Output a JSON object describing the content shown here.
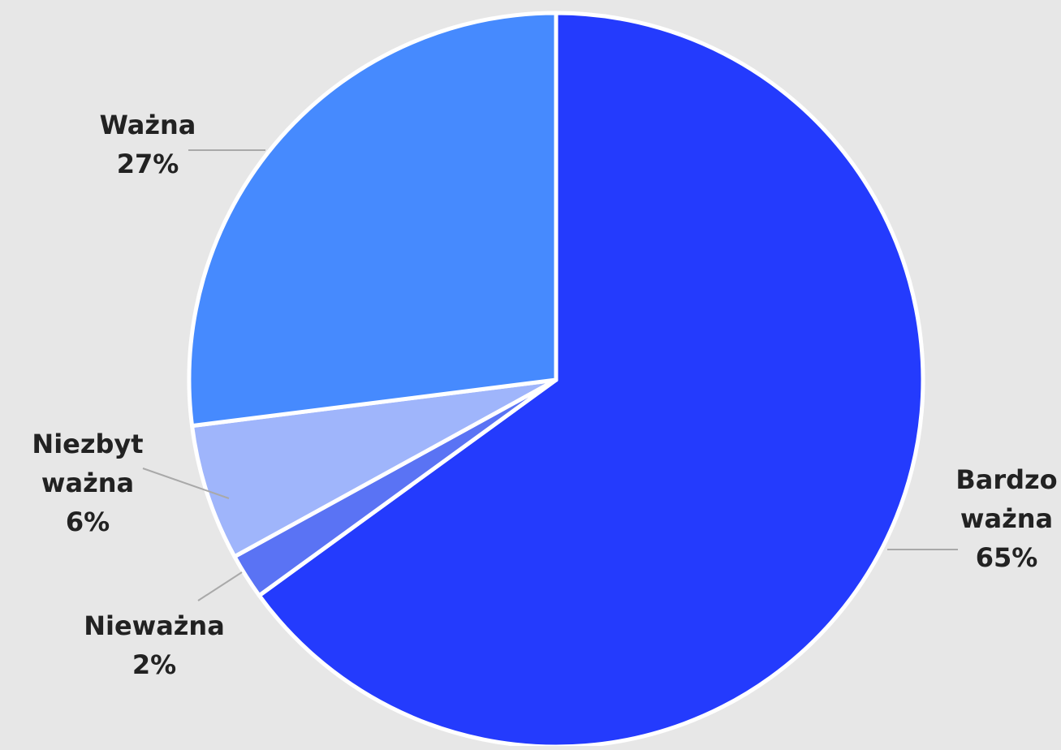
{
  "chart_data": {
    "type": "pie",
    "colors": {
      "background": "#e7e7e7",
      "slice_border": "#ffffff",
      "leader_line": "#a9a9a9",
      "label_text": "#222222"
    },
    "slices": [
      {
        "key": "bardzo",
        "label_lines": [
          "Bardzo",
          "ważna"
        ],
        "value_label": "65%",
        "value": 65,
        "color": "#243bfd"
      },
      {
        "key": "niewazna",
        "label_lines": [
          "Nieważna"
        ],
        "value_label": "2%",
        "value": 2,
        "color": "#5a73f4"
      },
      {
        "key": "niezbyt",
        "label_lines": [
          "Niezbyt",
          "ważna"
        ],
        "value_label": "6%",
        "value": 6,
        "color": "#9fb5fb"
      },
      {
        "key": "wazna",
        "label_lines": [
          "Ważna"
        ],
        "value_label": "27%",
        "value": 27,
        "color": "#468afe"
      }
    ]
  }
}
